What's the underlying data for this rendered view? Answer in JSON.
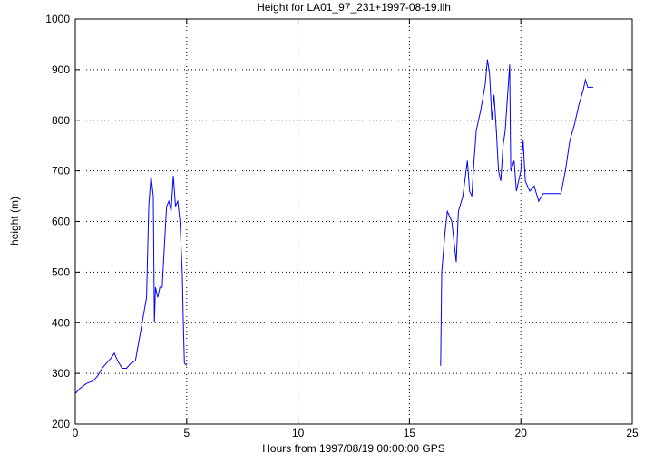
{
  "chart_data": {
    "type": "line",
    "title": "Height for LA01_97_231+1997-08-19.llh",
    "x_label": "Hours from 1997/08/19 00:00:00 GPS",
    "y_label": "height (m)",
    "xlim": [
      0,
      25
    ],
    "xticks": [
      0,
      5,
      10,
      15,
      20,
      25
    ],
    "ylim": [
      200,
      1000
    ],
    "yticks": [
      200,
      300,
      400,
      500,
      600,
      700,
      800,
      900,
      1000
    ],
    "grid": true,
    "series": [
      {
        "color": "#0000ff",
        "x": [
          0,
          0.2,
          0.5,
          0.8,
          1.0,
          1.2,
          1.4,
          1.6,
          1.75,
          1.9,
          2.1,
          2.3,
          2.5,
          2.7,
          2.8,
          3.0,
          3.2,
          3.3,
          3.4,
          3.5,
          3.55,
          3.6,
          3.7,
          3.8,
          3.9,
          4.0,
          4.1,
          4.2,
          4.3,
          4.4,
          4.5,
          4.6,
          4.7,
          4.8,
          4.85,
          4.9,
          5.0,
          10,
          16.4,
          16.45,
          16.6,
          16.7,
          16.9,
          17.1,
          17.2,
          17.4,
          17.6,
          17.7,
          17.8,
          17.9,
          18.0,
          18.2,
          18.4,
          18.5,
          18.6,
          18.7,
          18.8,
          18.9,
          19.0,
          19.1,
          19.2,
          19.3,
          19.5,
          19.55,
          19.7,
          19.8,
          20.0,
          20.1,
          20.2,
          20.4,
          20.6,
          20.8,
          21.0,
          21.5,
          21.8,
          22.0,
          22.2,
          22.4,
          22.6,
          22.8,
          22.9,
          23.0,
          23.2,
          23.25
        ],
        "values": [
          260,
          270,
          280,
          285,
          295,
          310,
          320,
          330,
          340,
          325,
          310,
          310,
          320,
          325,
          350,
          400,
          450,
          630,
          690,
          650,
          400,
          470,
          450,
          470,
          470,
          550,
          630,
          640,
          620,
          690,
          630,
          640,
          600,
          500,
          400,
          320,
          315,
          null,
          315,
          500,
          580,
          620,
          600,
          520,
          620,
          650,
          720,
          660,
          650,
          720,
          780,
          820,
          870,
          920,
          890,
          800,
          850,
          780,
          700,
          680,
          750,
          780,
          910,
          700,
          720,
          660,
          700,
          760,
          680,
          660,
          670,
          640,
          655,
          655,
          655,
          700,
          760,
          790,
          830,
          860,
          880,
          865,
          865,
          865
        ]
      }
    ]
  }
}
